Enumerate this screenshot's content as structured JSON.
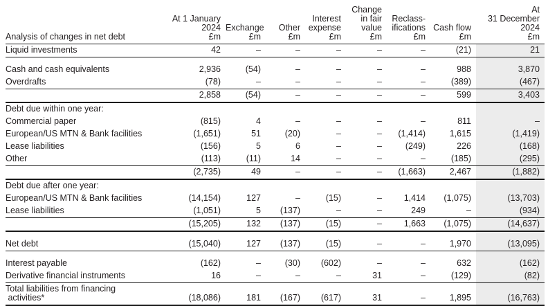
{
  "table": {
    "header": {
      "row_label_header": "Analysis of changes in net debt",
      "columns": [
        "At 1 January\n2024\n£m",
        "Exchange\n£m",
        "Other\n£m",
        "Interest\nexpense\n£m",
        "Change\nin fair value\n£m",
        "Reclass-\nifications\n£m",
        "Cash flow\n£m",
        "At\n31 December\n2024\n£m"
      ]
    },
    "rows": [
      {
        "label": "Liquid investments",
        "kind": "data",
        "rule_below": true,
        "values": [
          "42",
          "–",
          "–",
          "–",
          "–",
          "–",
          "(21)",
          "21"
        ]
      },
      {
        "label": "Cash and cash equivalents",
        "kind": "data",
        "gap_above": true,
        "values": [
          "2,936",
          "(54)",
          "–",
          "–",
          "–",
          "–",
          "988",
          "3,870"
        ]
      },
      {
        "label": "Overdrafts",
        "kind": "data",
        "rule_below": true,
        "values": [
          "(78)",
          "–",
          "–",
          "–",
          "–",
          "–",
          "(389)",
          "(467)"
        ]
      },
      {
        "label": "",
        "kind": "subtotal",
        "heavy_below": true,
        "values": [
          "2,858",
          "(54)",
          "–",
          "–",
          "–",
          "–",
          "599",
          "3,403"
        ]
      },
      {
        "label": "Debt due within one year:",
        "kind": "section"
      },
      {
        "label": "Commercial paper",
        "kind": "data",
        "values": [
          "(815)",
          "4",
          "–",
          "–",
          "–",
          "–",
          "811",
          "–"
        ]
      },
      {
        "label": "European/US MTN & Bank facilities",
        "kind": "data",
        "values": [
          "(1,651)",
          "51",
          "(20)",
          "–",
          "–",
          "(1,414)",
          "1,615",
          "(1,419)"
        ]
      },
      {
        "label": "Lease liabilities",
        "kind": "data",
        "values": [
          "(156)",
          "5",
          "6",
          "–",
          "–",
          "(249)",
          "226",
          "(168)"
        ]
      },
      {
        "label": "Other",
        "kind": "data",
        "rule_below": true,
        "values": [
          "(113)",
          "(11)",
          "14",
          "–",
          "–",
          "–",
          "(185)",
          "(295)"
        ]
      },
      {
        "label": "",
        "kind": "subtotal",
        "heavy_below": true,
        "values": [
          "(2,735)",
          "49",
          "–",
          "–",
          "–",
          "(1,663)",
          "2,467",
          "(1,882)"
        ]
      },
      {
        "label": "Debt due after one year:",
        "kind": "section"
      },
      {
        "label": "European/US MTN & Bank facilities",
        "kind": "data",
        "values": [
          "(14,154)",
          "127",
          "–",
          "(15)",
          "–",
          "1,414",
          "(1,075)",
          "(13,703)"
        ]
      },
      {
        "label": "Lease liabilities",
        "kind": "data",
        "rule_below": true,
        "values": [
          "(1,051)",
          "5",
          "(137)",
          "–",
          "–",
          "249",
          "–",
          "(934)"
        ]
      },
      {
        "label": "",
        "kind": "subtotal",
        "heavy_below": true,
        "values": [
          "(15,205)",
          "132",
          "(137)",
          "(15)",
          "–",
          "1,663",
          "(1,075)",
          "(14,637)"
        ]
      },
      {
        "label": "Net debt",
        "kind": "data",
        "gap_above": true,
        "rule_below": true,
        "values": [
          "(15,040)",
          "127",
          "(137)",
          "(15)",
          "–",
          "–",
          "1,970",
          "(13,095)"
        ]
      },
      {
        "label": "Interest payable",
        "kind": "data",
        "gap_above": true,
        "values": [
          "(162)",
          "–",
          "(30)",
          "(602)",
          "–",
          "–",
          "632",
          "(162)"
        ]
      },
      {
        "label": "Derivative financial instruments",
        "kind": "data",
        "rule_below": true,
        "values": [
          "16",
          "–",
          "–",
          "–",
          "31",
          "–",
          "(129)",
          "(82)"
        ]
      },
      {
        "label": "Total liabilities from financing\n activities*",
        "kind": "data",
        "heavy_below": true,
        "values": [
          "(18,086)",
          "181",
          "(167)",
          "(617)",
          "31",
          "–",
          "1,895",
          "(16,763)"
        ]
      }
    ]
  },
  "colors": {
    "highlight_column_bg": "#ececec",
    "text": "#231f20",
    "rule": "#1a1a1a"
  }
}
